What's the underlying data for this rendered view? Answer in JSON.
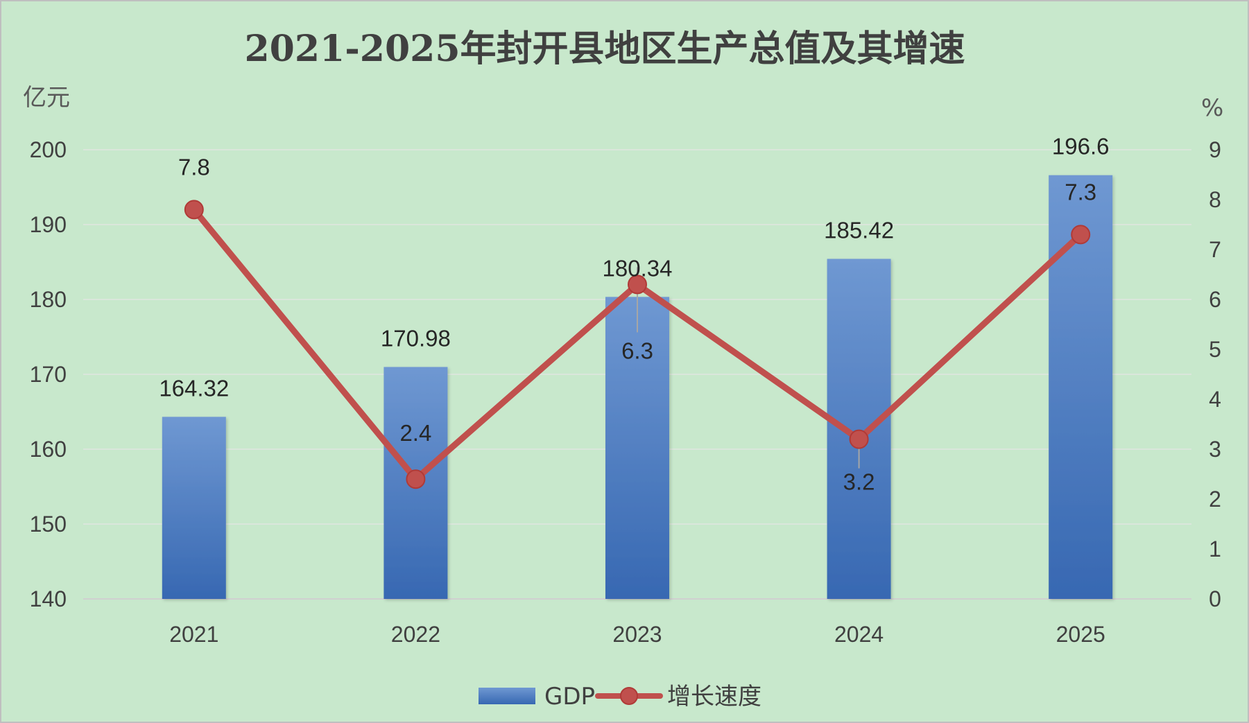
{
  "chart_data": {
    "type": "bar",
    "title": "2021-2025年封开县地区生产总值及其增速",
    "categories": [
      "2021",
      "2022",
      "2023",
      "2024",
      "2025"
    ],
    "series": [
      {
        "name": "GDP",
        "type": "bar",
        "axis": "left",
        "values": [
          164.32,
          170.98,
          180.34,
          185.42,
          196.6
        ],
        "labels": [
          "164.32",
          "170.98",
          "180.34",
          "185.42",
          "196.6"
        ],
        "color": "#4a7dc4"
      },
      {
        "name": "增长速度",
        "type": "line",
        "axis": "right",
        "values": [
          7.8,
          2.4,
          6.3,
          3.2,
          7.3
        ],
        "labels": [
          "7.8",
          "2.4",
          "6.3",
          "3.2",
          "7.3"
        ],
        "color": "#c0504d"
      }
    ],
    "y_left": {
      "unit": "亿元",
      "ylim": [
        140,
        200
      ],
      "ticks": [
        "140",
        "150",
        "160",
        "170",
        "180",
        "190",
        "200"
      ]
    },
    "y_right": {
      "unit": "%",
      "ylim": [
        0,
        9
      ],
      "ticks": [
        "0",
        "1",
        "2",
        "3",
        "4",
        "5",
        "6",
        "7",
        "8",
        "9"
      ]
    },
    "grid": true,
    "legend": "bottom",
    "background_color": "#c8e8cc"
  }
}
